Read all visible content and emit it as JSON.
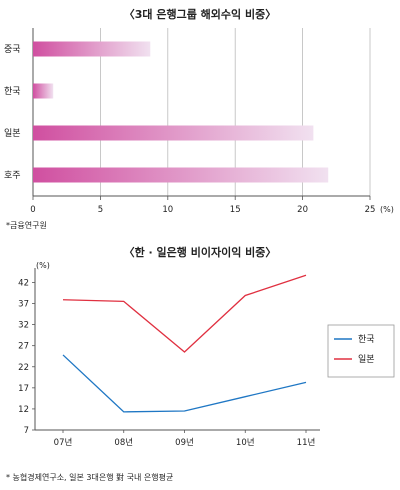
{
  "chart_data": [
    {
      "type": "bar",
      "orientation": "horizontal",
      "title": "〈3대 은행그룹 해외수익 비중〉",
      "categories": [
        "중국",
        "한국",
        "일본",
        "호주"
      ],
      "values": [
        8.7,
        1.5,
        20.8,
        21.9
      ],
      "xlim": [
        0,
        25
      ],
      "xticks": [
        "0",
        "5",
        "10",
        "15",
        "20",
        "25"
      ],
      "unit": "(%)",
      "grid": true,
      "bar_color": "#d04fa0",
      "source": "*금융연구원"
    },
    {
      "type": "line",
      "title": "〈한 · 일은행 비이자이익 비중〉",
      "ylabel": "(%)",
      "categories": [
        "07년",
        "08년",
        "09년",
        "10년",
        "11년"
      ],
      "yticks": [
        "7",
        "12",
        "17",
        "22",
        "27",
        "32",
        "37",
        "42"
      ],
      "ylim": [
        7,
        44
      ],
      "series": [
        {
          "name": "한국",
          "color": "#1f77c4",
          "values": [
            24.8,
            11.3,
            11.5,
            14.9,
            18.3
          ]
        },
        {
          "name": "일본",
          "color": "#e03040",
          "values": [
            37.9,
            37.5,
            25.5,
            38.9,
            43.7
          ]
        }
      ],
      "legend_position": "right",
      "source": "* 농협경제연구소, 일본 3대은행 對 국내 은행평균"
    }
  ]
}
